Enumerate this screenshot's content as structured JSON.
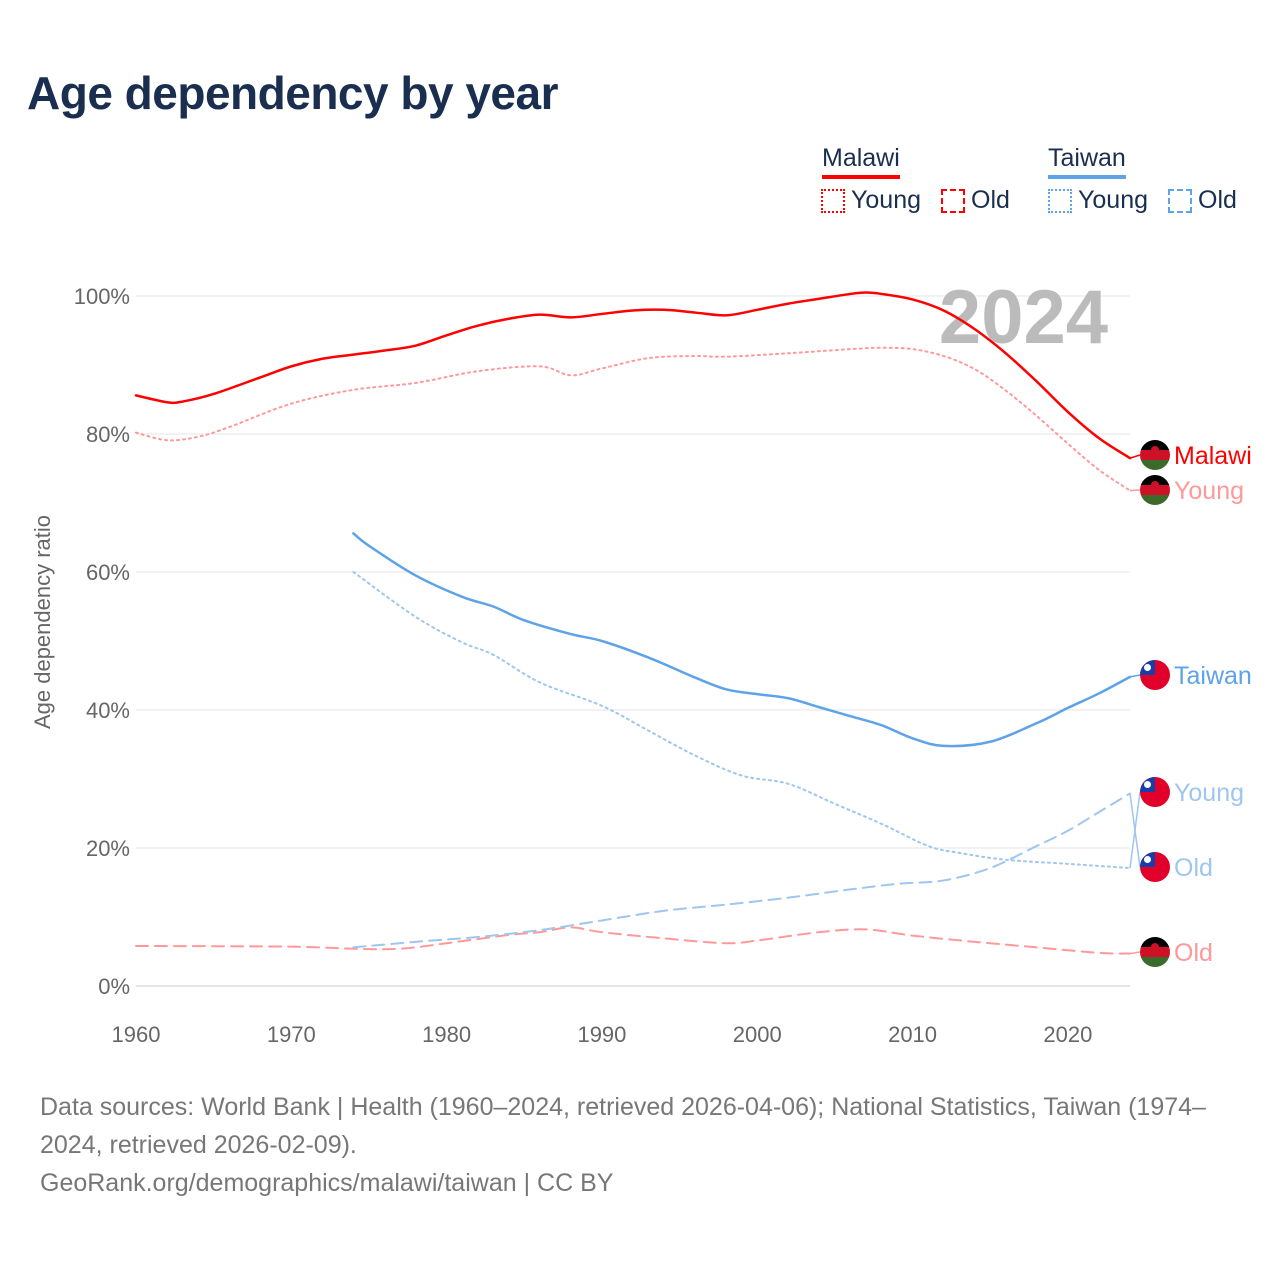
{
  "title": "Age dependency by year",
  "legend": {
    "groups": [
      {
        "name": "Malawi",
        "color": "#ff0000",
        "items": [
          "Young",
          "Old"
        ]
      },
      {
        "name": "Taiwan",
        "color": "#5ea2e8",
        "items": [
          "Young",
          "Old"
        ]
      }
    ]
  },
  "year_watermark": "2024",
  "footer": {
    "line1": "Data sources: World Bank | Health (1960–2024, retrieved 2026-04-06); National Statistics, Taiwan (1974–2024, retrieved 2026-02-09).",
    "line2": "GeoRank.org/demographics/malawi/taiwan | CC BY"
  },
  "chart_data": {
    "type": "line",
    "title": "Age dependency by year",
    "xlabel": "",
    "ylabel": "Age dependency ratio",
    "xlim": [
      1960,
      2024
    ],
    "ylim": [
      0,
      100
    ],
    "x_ticks": [
      "1960",
      "1970",
      "1980",
      "1990",
      "2000",
      "2010",
      "2020"
    ],
    "y_ticks": [
      "0%",
      "20%",
      "40%",
      "60%",
      "80%",
      "100%"
    ],
    "grid": true,
    "series": [
      {
        "name": "Malawi",
        "label": "Malawi",
        "color": "#ff0000",
        "style": "solid",
        "x": [
          1960,
          1962,
          1963,
          1965,
          1968,
          1970,
          1972,
          1974,
          1976,
          1978,
          1980,
          1982,
          1984,
          1986,
          1988,
          1990,
          1992,
          1994,
          1996,
          1998,
          2000,
          2002,
          2004,
          2006,
          2007,
          2008,
          2010,
          2012,
          2014,
          2016,
          2018,
          2020,
          2022,
          2024
        ],
        "values": [
          85.6,
          84.6,
          84.7,
          85.8,
          88.2,
          89.8,
          90.9,
          91.5,
          92.1,
          92.8,
          94.3,
          95.7,
          96.7,
          97.3,
          96.9,
          97.4,
          97.9,
          98.0,
          97.6,
          97.2,
          98.0,
          98.9,
          99.6,
          100.3,
          100.5,
          100.3,
          99.5,
          97.9,
          95.2,
          91.7,
          87.6,
          83.2,
          79.4,
          76.5
        ]
      },
      {
        "name": "Malawi Young",
        "label": "Young",
        "color": "#ff9999",
        "style": "dotted",
        "x": [
          1960,
          1962,
          1964,
          1966,
          1970,
          1974,
          1978,
          1982,
          1986,
          1988,
          1990,
          1993,
          1996,
          1998,
          2002,
          2006,
          2008,
          2010,
          2012,
          2014,
          2016,
          2018,
          2020,
          2022,
          2024
        ],
        "values": [
          80.2,
          79.1,
          79.6,
          81.0,
          84.4,
          86.4,
          87.4,
          89.1,
          89.8,
          88.5,
          89.5,
          91.0,
          91.3,
          91.2,
          91.7,
          92.3,
          92.5,
          92.3,
          91.3,
          89.4,
          86.3,
          82.6,
          78.6,
          74.8,
          71.8
        ]
      },
      {
        "name": "Malawi Old",
        "label": "Old",
        "color": "#ff9999",
        "style": "dashed",
        "x": [
          1960,
          1970,
          1974,
          1977,
          1980,
          1984,
          1986,
          1988,
          1990,
          1994,
          1998,
          2000,
          2004,
          2007,
          2010,
          2014,
          2018,
          2022,
          2024
        ],
        "values": [
          5.8,
          5.7,
          5.4,
          5.4,
          6.2,
          7.4,
          7.8,
          8.5,
          7.8,
          6.9,
          6.2,
          6.6,
          7.8,
          8.2,
          7.3,
          6.4,
          5.6,
          4.8,
          4.7
        ]
      },
      {
        "name": "Taiwan",
        "label": "Taiwan",
        "color": "#5ea2e8",
        "style": "solid",
        "x": [
          1974,
          1975,
          1978,
          1981,
          1983,
          1985,
          1988,
          1990,
          1993,
          1996,
          1998,
          2000,
          2002,
          2004,
          2006,
          2008,
          2010,
          2012,
          2015,
          2018,
          2020,
          2022,
          2024
        ],
        "values": [
          65.6,
          63.8,
          59.5,
          56.4,
          55.0,
          53.0,
          51.0,
          50.0,
          47.6,
          44.7,
          43.0,
          42.3,
          41.7,
          40.4,
          39.1,
          37.8,
          35.9,
          34.8,
          35.4,
          38.1,
          40.3,
          42.4,
          44.8
        ]
      },
      {
        "name": "Taiwan Old",
        "label": "Old",
        "color": "#9ec6f0",
        "style": "dashed",
        "x": [
          1974,
          1978,
          1982,
          1986,
          1990,
          1994,
          1998,
          2002,
          2006,
          2009,
          2012,
          2015,
          2018,
          2020,
          2022,
          2024
        ],
        "values": [
          5.6,
          6.4,
          7.1,
          8.1,
          9.5,
          10.9,
          11.8,
          12.8,
          14.0,
          14.8,
          15.3,
          17.1,
          20.3,
          22.5,
          25.2,
          27.9
        ]
      },
      {
        "name": "Taiwan Young",
        "label": "Young",
        "color": "#9ec6f0",
        "style": "dotted",
        "x": [
          1974,
          1978,
          1981,
          1983,
          1986,
          1990,
          1993,
          1996,
          1999,
          2002,
          2005,
          2008,
          2011,
          2013,
          2016,
          2020,
          2024
        ],
        "values": [
          60.0,
          53.5,
          49.8,
          48.0,
          44.0,
          40.6,
          37.0,
          33.4,
          30.5,
          29.3,
          26.4,
          23.5,
          20.3,
          19.3,
          18.3,
          17.7,
          17.1
        ]
      }
    ]
  }
}
